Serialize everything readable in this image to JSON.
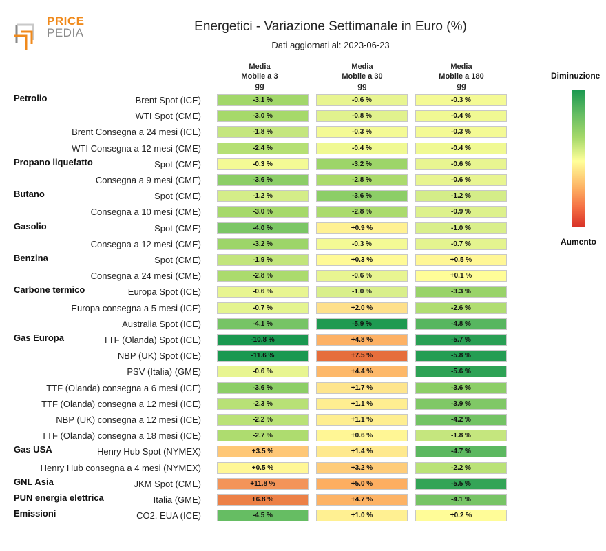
{
  "brand": {
    "line1": "PRICE",
    "line2": "PEDIA"
  },
  "colors": {
    "brand_orange": "#f08a1c",
    "brand_gray": "#8a8a8a"
  },
  "chart_data": {
    "type": "table",
    "title": "Energetici - Variazione Settimanale in Euro (%)",
    "subtitle": "Dati aggiornati al: 2023-06-23",
    "columns": [
      [
        "Media",
        "Mobile a 3",
        "gg"
      ],
      [
        "Media",
        "Mobile a 30",
        "gg"
      ],
      [
        "Media",
        "Mobile a 180",
        "gg"
      ]
    ],
    "legend": {
      "top": "Diminuzione",
      "bottom": "Aumento"
    },
    "rows": [
      {
        "group": "Petrolio",
        "label": "Brent Spot (ICE)",
        "values": [
          -3.1,
          -0.6,
          -0.3
        ],
        "texts": [
          "-3.1 %",
          "-0.6 %",
          "-0.3 %"
        ]
      },
      {
        "group": "",
        "label": "WTI Spot (CME)",
        "values": [
          -3.0,
          -0.8,
          -0.4
        ],
        "texts": [
          "-3.0 %",
          "-0.8 %",
          "-0.4 %"
        ]
      },
      {
        "group": "",
        "label": "Brent Consegna a 24 mesi (ICE)",
        "values": [
          -1.8,
          -0.3,
          -0.3
        ],
        "texts": [
          "-1.8 %",
          "-0.3 %",
          "-0.3 %"
        ]
      },
      {
        "group": "",
        "label": "WTI Consegna a 12 mesi (CME)",
        "values": [
          -2.4,
          -0.4,
          -0.4
        ],
        "texts": [
          "-2.4 %",
          "-0.4 %",
          "-0.4 %"
        ]
      },
      {
        "group": "Propano liquefatto",
        "label": "Spot (CME)",
        "values": [
          -0.3,
          -3.2,
          -0.6
        ],
        "texts": [
          "-0.3 %",
          "-3.2 %",
          "-0.6 %"
        ]
      },
      {
        "group": "",
        "label": "Consegna a 9 mesi (CME)",
        "values": [
          -3.6,
          -2.8,
          -0.6
        ],
        "texts": [
          "-3.6 %",
          "-2.8 %",
          "-0.6 %"
        ]
      },
      {
        "group": "Butano",
        "label": "Spot (CME)",
        "values": [
          -1.2,
          -3.6,
          -1.2
        ],
        "texts": [
          "-1.2 %",
          "-3.6 %",
          "-1.2 %"
        ]
      },
      {
        "group": "",
        "label": "Consegna a 10 mesi (CME)",
        "values": [
          -3.0,
          -2.8,
          -0.9
        ],
        "texts": [
          "-3.0 %",
          "-2.8 %",
          "-0.9 %"
        ]
      },
      {
        "group": "Gasolio",
        "label": "Spot (CME)",
        "values": [
          -4.0,
          0.9,
          -1.0
        ],
        "texts": [
          "-4.0 %",
          "+0.9 %",
          "-1.0 %"
        ]
      },
      {
        "group": "",
        "label": "Consegna a 12 mesi (CME)",
        "values": [
          -3.2,
          -0.3,
          -0.7
        ],
        "texts": [
          "-3.2 %",
          "-0.3 %",
          "-0.7 %"
        ]
      },
      {
        "group": "Benzina",
        "label": "Spot (CME)",
        "values": [
          -1.9,
          0.3,
          0.5
        ],
        "texts": [
          "-1.9 %",
          "+0.3 %",
          "+0.5 %"
        ]
      },
      {
        "group": "",
        "label": "Consegna a 24 mesi (CME)",
        "values": [
          -2.8,
          -0.6,
          0.1
        ],
        "texts": [
          "-2.8 %",
          "-0.6 %",
          "+0.1 %"
        ]
      },
      {
        "group": "Carbone termico",
        "label": "Europa Spot (ICE)",
        "values": [
          -0.6,
          -1.0,
          -3.3
        ],
        "texts": [
          "-0.6 %",
          "-1.0 %",
          "-3.3 %"
        ]
      },
      {
        "group": "",
        "label": "Europa consegna a 5 mesi (ICE)",
        "values": [
          -0.7,
          2.0,
          -2.6
        ],
        "texts": [
          "-0.7 %",
          "+2.0 %",
          "-2.6 %"
        ]
      },
      {
        "group": "",
        "label": "Australia Spot (ICE)",
        "values": [
          -4.1,
          -5.9,
          -4.8
        ],
        "texts": [
          "-4.1 %",
          "-5.9 %",
          "-4.8 %"
        ]
      },
      {
        "group": "Gas Europa",
        "label": "TTF (Olanda) Spot (ICE)",
        "values": [
          -10.8,
          4.8,
          -5.7
        ],
        "texts": [
          "-10.8 %",
          "+4.8 %",
          "-5.7 %"
        ]
      },
      {
        "group": "",
        "label": "NBP (UK) Spot (ICE)",
        "values": [
          -11.6,
          7.5,
          -5.8
        ],
        "texts": [
          "-11.6 %",
          "+7.5 %",
          "-5.8 %"
        ]
      },
      {
        "group": "",
        "label": "PSV (Italia) (GME)",
        "values": [
          -0.6,
          4.4,
          -5.6
        ],
        "texts": [
          "-0.6 %",
          "+4.4 %",
          "-5.6 %"
        ]
      },
      {
        "group": "",
        "label": "TTF (Olanda) consegna a 6 mesi (ICE)",
        "values": [
          -3.6,
          1.7,
          -3.6
        ],
        "texts": [
          "-3.6 %",
          "+1.7 %",
          "-3.6 %"
        ]
      },
      {
        "group": "",
        "label": "TTF (Olanda) consegna a 12 mesi (ICE)",
        "values": [
          -2.3,
          1.1,
          -3.9
        ],
        "texts": [
          "-2.3 %",
          "+1.1 %",
          "-3.9 %"
        ]
      },
      {
        "group": "",
        "label": "NBP (UK) consegna a 12 mesi (ICE)",
        "values": [
          -2.2,
          1.1,
          -4.2
        ],
        "texts": [
          "-2.2 %",
          "+1.1 %",
          "-4.2 %"
        ]
      },
      {
        "group": "",
        "label": "TTF (Olanda) consegna a 18 mesi (ICE)",
        "values": [
          -2.7,
          0.6,
          -1.8
        ],
        "texts": [
          "-2.7 %",
          "+0.6 %",
          "-1.8 %"
        ]
      },
      {
        "group": "Gas USA",
        "label": "Henry Hub Spot (NYMEX)",
        "values": [
          3.5,
          1.4,
          -4.7
        ],
        "texts": [
          "+3.5 %",
          "+1.4 %",
          "-4.7 %"
        ]
      },
      {
        "group": "",
        "label": "Henry Hub consegna a 4 mesi (NYMEX)",
        "values": [
          0.5,
          3.2,
          -2.2
        ],
        "texts": [
          "+0.5 %",
          "+3.2 %",
          "-2.2 %"
        ]
      },
      {
        "group": "GNL Asia",
        "label": "JKM Spot (CME)",
        "values": [
          11.8,
          5.0,
          -5.5
        ],
        "texts": [
          "+11.8 %",
          "+5.0 %",
          "-5.5 %"
        ]
      },
      {
        "group": "PUN energia elettrica",
        "label": "Italia (GME)",
        "values": [
          6.8,
          4.7,
          -4.1
        ],
        "texts": [
          "+6.8 %",
          "+4.7 %",
          "-4.1 %"
        ]
      },
      {
        "group": "Emissioni",
        "label": "CO2, EUA (ICE)",
        "values": [
          -4.5,
          1.0,
          0.2
        ],
        "texts": [
          "-4.5 %",
          "+1.0 %",
          "+0.2 %"
        ]
      }
    ]
  }
}
